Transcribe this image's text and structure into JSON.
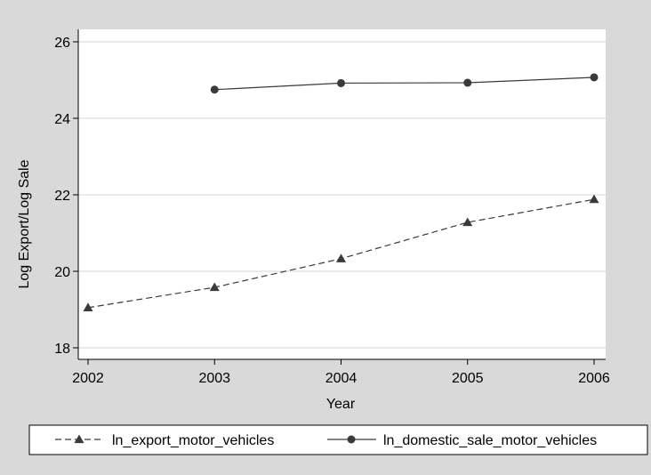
{
  "chart_data": {
    "type": "line",
    "xlabel": "Year",
    "ylabel": "Log Export/Log Sale",
    "xlim": [
      2002,
      2006
    ],
    "ylim": [
      18,
      26
    ],
    "xticks": [
      "2002",
      "2003",
      "2004",
      "2005",
      "2006"
    ],
    "yticks": [
      "18",
      "20",
      "22",
      "24",
      "26"
    ],
    "grid": "horizontal",
    "legend_position": "bottom",
    "series": [
      {
        "name": "ln_export_motor_vehicles",
        "style": "dashed",
        "marker": "triangle",
        "color": "#3a3a3a",
        "x": [
          2002,
          2003,
          2004,
          2005,
          2006
        ],
        "y": [
          19.05,
          19.58,
          20.33,
          21.28,
          21.88
        ]
      },
      {
        "name": "ln_domestic_sale_motor_vehicles",
        "style": "solid",
        "marker": "circle",
        "color": "#3a3a3a",
        "x": [
          2003,
          2004,
          2005,
          2006
        ],
        "y": [
          24.75,
          24.92,
          24.93,
          25.07
        ]
      }
    ]
  }
}
